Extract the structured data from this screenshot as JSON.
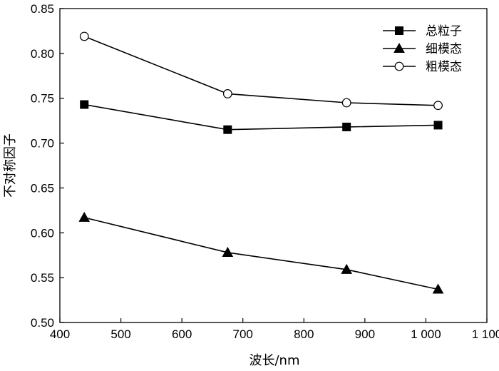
{
  "chart_data": {
    "type": "line",
    "title": "",
    "xlabel": "波长/nm",
    "ylabel": "不对称因子",
    "xlim": [
      400,
      1100
    ],
    "ylim": [
      0.5,
      0.85
    ],
    "x_ticks": [
      400,
      500,
      600,
      700,
      800,
      900,
      1000,
      1100
    ],
    "x_tick_labels": [
      "400",
      "500",
      "600",
      "700",
      "800",
      "900",
      "1 000",
      "1 100"
    ],
    "y_ticks": [
      0.5,
      0.55,
      0.6,
      0.65,
      0.7,
      0.75,
      0.8,
      0.85
    ],
    "y_tick_labels": [
      "0.50",
      "0.55",
      "0.60",
      "0.65",
      "0.70",
      "0.75",
      "0.80",
      "0.85"
    ],
    "grid": false,
    "legend_position": "top-right",
    "x": [
      440,
      675,
      870,
      1020
    ],
    "series": [
      {
        "name": "总粒子",
        "marker": "filled-square",
        "values": [
          0.743,
          0.715,
          0.718,
          0.72
        ]
      },
      {
        "name": "细模态",
        "marker": "filled-triangle",
        "values": [
          0.617,
          0.578,
          0.559,
          0.537
        ]
      },
      {
        "name": "粗模态",
        "marker": "open-circle",
        "values": [
          0.819,
          0.755,
          0.745,
          0.742
        ]
      }
    ],
    "colors": {
      "line": "#000000",
      "axis": "#000000",
      "background": "#ffffff"
    }
  }
}
